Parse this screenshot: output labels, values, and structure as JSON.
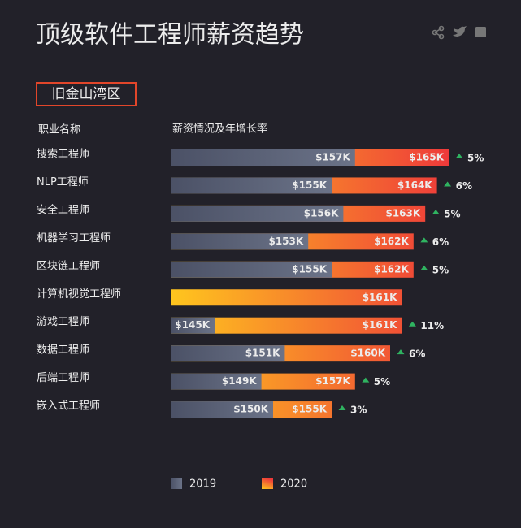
{
  "chart_data": {
    "type": "bar",
    "title": "顶级软件工程师薪资趋势",
    "region": "旧金山湾区",
    "category_header": "职业名称",
    "value_header": "薪资情况及年增长率",
    "categories": [
      "搜索工程师",
      "NLP工程师",
      "安全工程师",
      "机器学习工程师",
      "区块链工程师",
      "计算机视觉工程师",
      "游戏工程师",
      "数据工程师",
      "后端工程师",
      "嵌入式工程师"
    ],
    "xlim": [
      141.25,
      165
    ],
    "series": [
      {
        "name": "2019",
        "color": [
          "#4b5166",
          "#6b7388"
        ],
        "values": [
          157,
          155,
          156,
          153,
          155,
          null,
          145,
          151,
          149,
          150
        ],
        "value_labels": [
          "$157K",
          "$155K",
          "$156K",
          "$153K",
          "$155K",
          null,
          "$145K",
          "$151K",
          "$149K",
          "$150K"
        ]
      },
      {
        "name": "2020",
        "color": [
          "#ffc61e",
          "#ee3a3a"
        ],
        "values": [
          165,
          164,
          163,
          162,
          162,
          161,
          161,
          160,
          157,
          155
        ],
        "value_labels": [
          "$165K",
          "$164K",
          "$163K",
          "$162K",
          "$162K",
          "$161K",
          "$161K",
          "$160K",
          "$157K",
          "$155K"
        ]
      }
    ],
    "growth": {
      "color": "#2fb360",
      "values": [
        5,
        6,
        5,
        6,
        5,
        null,
        11,
        6,
        5,
        3
      ],
      "value_labels": [
        "5%",
        "6%",
        "5%",
        "6%",
        "5%",
        null,
        "11%",
        "6%",
        "5%",
        "3%"
      ]
    }
  }
}
